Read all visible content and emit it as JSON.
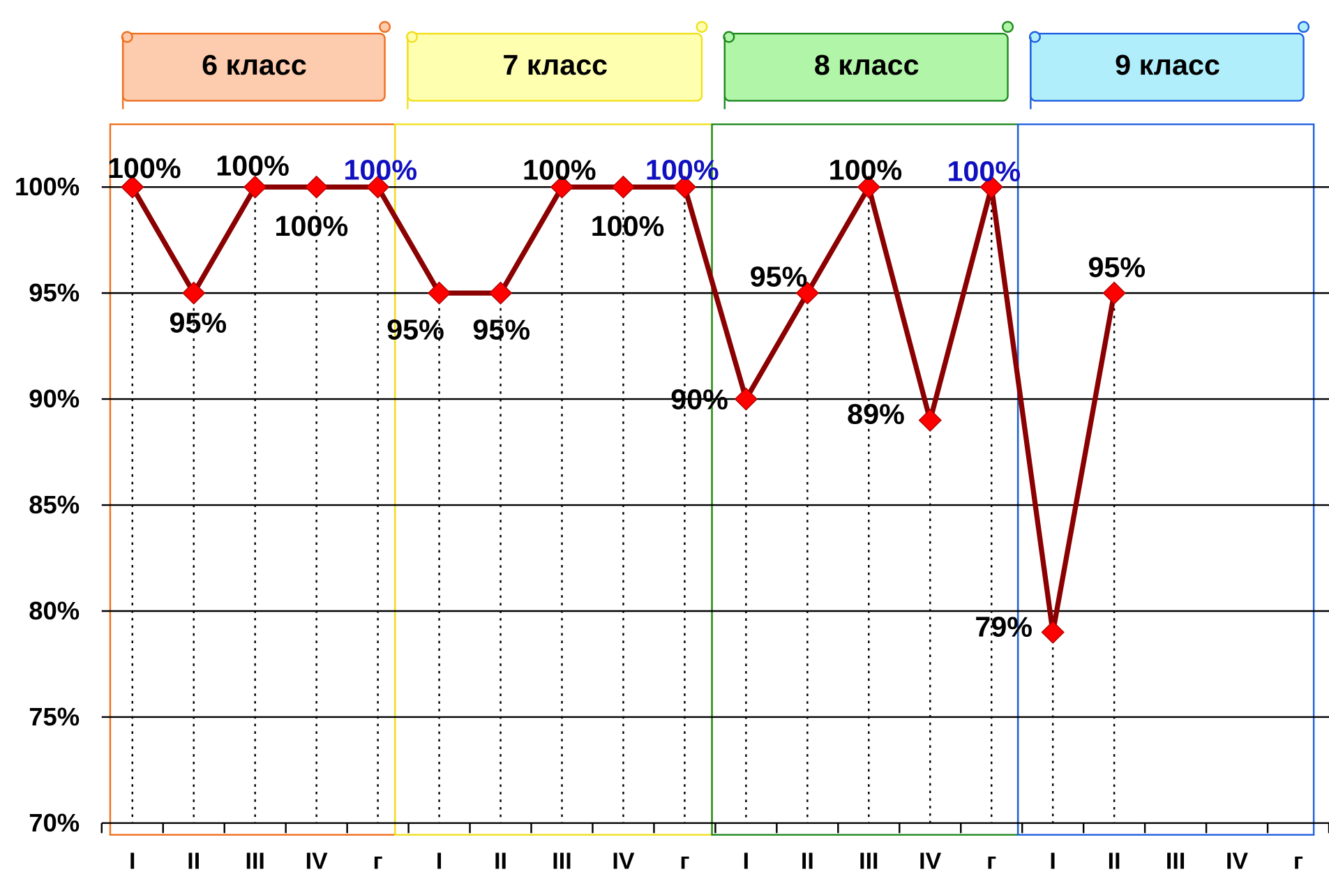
{
  "chart_data": {
    "type": "line",
    "groups": [
      {
        "name": "6 класс",
        "color": "#fdcbae",
        "border": "#f07020"
      },
      {
        "name": "7 класс",
        "color": "#ffffb0",
        "border": "#f0e020"
      },
      {
        "name": "8 класс",
        "color": "#b0f5a8",
        "border": "#208a20"
      },
      {
        "name": "9 класс",
        "color": "#b0eefc",
        "border": "#2060e0"
      }
    ],
    "categories": [
      "I",
      "II",
      "III",
      "IV",
      "г",
      "I",
      "II",
      "III",
      "IV",
      "г",
      "I",
      "II",
      "III",
      "IV",
      "г",
      "I",
      "II",
      "III",
      "IV",
      "г"
    ],
    "series": [
      {
        "color": "#8b0000",
        "marker_color": "#ff0000",
        "values": [
          100,
          95,
          100,
          100,
          100,
          95,
          95,
          100,
          100,
          100,
          90,
          95,
          100,
          89,
          100,
          79,
          95,
          null,
          null,
          null
        ],
        "value_labels": [
          "100%",
          "95%",
          "100%",
          "100%",
          "100%",
          "95%",
          "95%",
          "100%",
          "100%",
          "100%",
          "90%",
          "95%",
          "100%",
          "89%",
          "100%",
          "79%",
          "95%",
          null,
          null,
          null
        ],
        "value_label_colors": [
          "#000000",
          "#000000",
          "#000000",
          "#000000",
          "#1010c0",
          "#000000",
          "#000000",
          "#000000",
          "#000000",
          "#1010c0",
          "#000000",
          "#000000",
          "#000000",
          "#000000",
          "#1010c0",
          "#000000",
          "#000000",
          null,
          null,
          null
        ]
      }
    ],
    "ylim": [
      70,
      103
    ],
    "yticks": [
      {
        "value": 70,
        "label": "70%"
      },
      {
        "value": 75,
        "label": "75%"
      },
      {
        "value": 80,
        "label": "80%"
      },
      {
        "value": 85,
        "label": "85%"
      },
      {
        "value": 90,
        "label": "90%"
      },
      {
        "value": 95,
        "label": "95%"
      },
      {
        "value": 100,
        "label": "100%"
      }
    ],
    "grid": true
  }
}
